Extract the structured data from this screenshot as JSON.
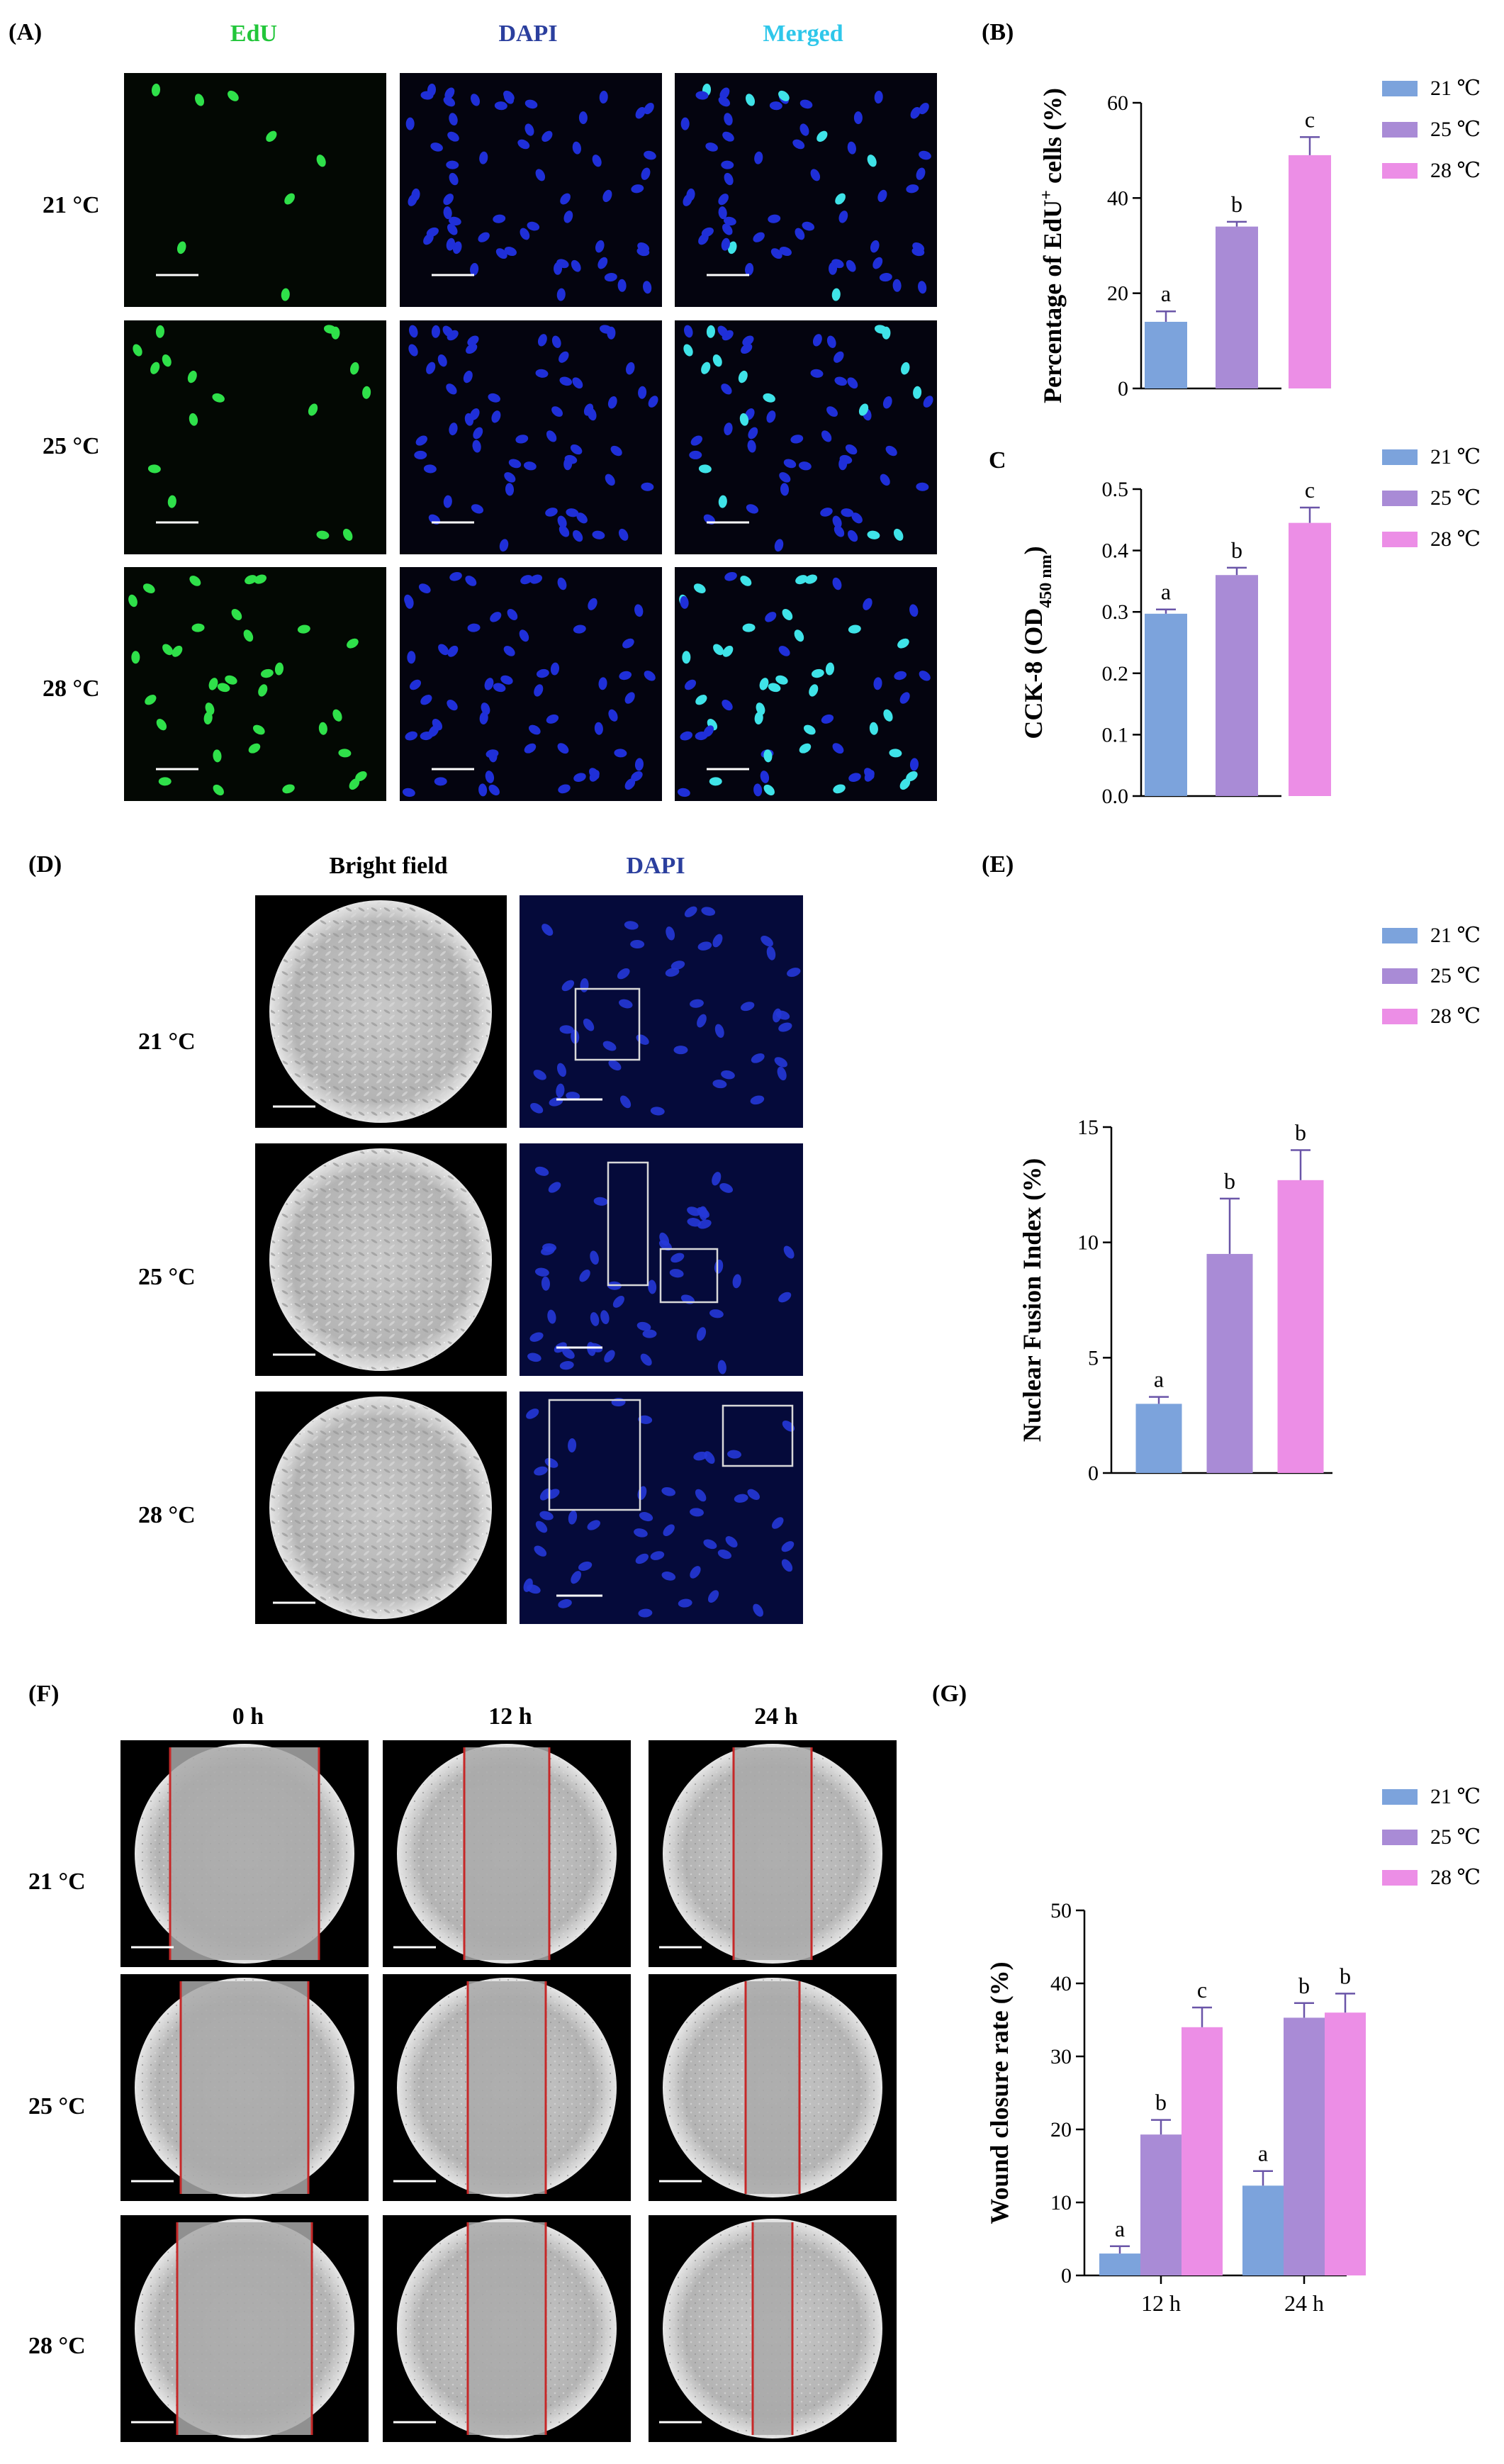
{
  "figure": {
    "panel_A": {
      "label": "(A)",
      "columns": [
        "EdU",
        "DAPI",
        "Merged"
      ],
      "rows": [
        "21 °C",
        "25 °C",
        "28 °C"
      ]
    },
    "panel_D": {
      "label": "(D)",
      "columns": [
        "Bright field",
        "DAPI"
      ],
      "rows": [
        "21 °C",
        "25 °C",
        "28 °C"
      ]
    },
    "panel_F": {
      "label": "(F)",
      "columns": [
        "0 h",
        "12 h",
        "24 h"
      ],
      "rows": [
        "21 °C",
        "25 °C",
        "28 °C"
      ]
    },
    "colors": {
      "t21": "#7ca3dc",
      "t25": "#a98bd6",
      "t28": "#ec8ee6",
      "edu": "#22c63a",
      "dapi": "#2b3f9e",
      "merged": "#2fc7ea",
      "error": "#6a55a8",
      "scratch": "#c62828"
    }
  },
  "chart_data": [
    {
      "id": "B",
      "panel_label": "(B)",
      "type": "bar",
      "categories": [
        "21 ℃",
        "25 ℃",
        "28 ℃"
      ],
      "values": [
        14,
        34,
        49
      ],
      "errors": [
        2.2,
        1.0,
        3.8
      ],
      "sig": [
        "a",
        "b",
        "c"
      ],
      "ylabel_main": "Percentage of EdU",
      "ylabel_sup": "+",
      "ylabel_tail": " cells (%)",
      "ylim": [
        0,
        60
      ],
      "yticks": [
        "0",
        "20",
        "40",
        "60"
      ],
      "legend": [
        "21 ℃",
        "25 ℃",
        "28 ℃"
      ],
      "legend_position": "top-right"
    },
    {
      "id": "C",
      "panel_label": "C",
      "type": "bar",
      "categories": [
        "21 ℃",
        "25 ℃",
        "28 ℃"
      ],
      "values": [
        0.297,
        0.36,
        0.445
      ],
      "errors": [
        0.007,
        0.012,
        0.025
      ],
      "sig": [
        "a",
        "b",
        "c"
      ],
      "ylabel_main": "CCK-8 (OD",
      "ylabel_sub": "450 nm",
      "ylabel_tail": ")",
      "ylim": [
        0,
        0.5
      ],
      "yticks": [
        "0.0",
        "0.1",
        "0.2",
        "0.3",
        "0.4",
        "0.5"
      ],
      "legend": [
        "21 ℃",
        "25 ℃",
        "28 ℃"
      ],
      "legend_position": "top-right"
    },
    {
      "id": "E",
      "panel_label": "(E)",
      "type": "bar",
      "categories": [
        "21 ℃",
        "25 ℃",
        "28 ℃"
      ],
      "values": [
        3.0,
        9.5,
        12.7
      ],
      "errors": [
        0.3,
        2.4,
        1.3
      ],
      "sig": [
        "a",
        "b",
        "b"
      ],
      "ylabel_main": "Nuclear Fusion Index (%)",
      "ylim": [
        0,
        15
      ],
      "yticks": [
        "0",
        "5",
        "10",
        "15"
      ],
      "legend": [
        "21 ℃",
        "25 ℃",
        "28 ℃"
      ],
      "legend_position": "top-right"
    },
    {
      "id": "G",
      "panel_label": "(G)",
      "type": "bar",
      "categories": [
        "12 h",
        "24 h"
      ],
      "series": [
        {
          "name": "21 ℃",
          "values": [
            3.0,
            12.3
          ],
          "errors": [
            1.0,
            2.0
          ],
          "sig": [
            "a",
            "a"
          ]
        },
        {
          "name": "25 ℃",
          "values": [
            19.3,
            35.3
          ],
          "errors": [
            2.0,
            2.0
          ],
          "sig": [
            "b",
            "b"
          ]
        },
        {
          "name": "28 ℃",
          "values": [
            34.0,
            36.0
          ],
          "errors": [
            2.7,
            2.6
          ],
          "sig": [
            "c",
            "b"
          ]
        }
      ],
      "ylabel_main": "Wound closure rate (%)",
      "ylim": [
        0,
        50
      ],
      "yticks": [
        "0",
        "10",
        "20",
        "30",
        "40",
        "50"
      ],
      "legend_position": "top-right"
    }
  ]
}
